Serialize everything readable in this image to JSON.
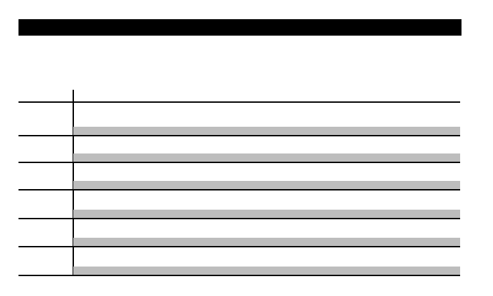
{
  "colors": {
    "header_bar": "#000000",
    "row_shading": "#bdbdbd",
    "rule": "#000000"
  },
  "table": {
    "rows": [
      {
        "label": "",
        "value": ""
      },
      {
        "label": "",
        "value": ""
      },
      {
        "label": "",
        "value": ""
      },
      {
        "label": "",
        "value": ""
      },
      {
        "label": "",
        "value": ""
      },
      {
        "label": "",
        "value": ""
      }
    ]
  }
}
